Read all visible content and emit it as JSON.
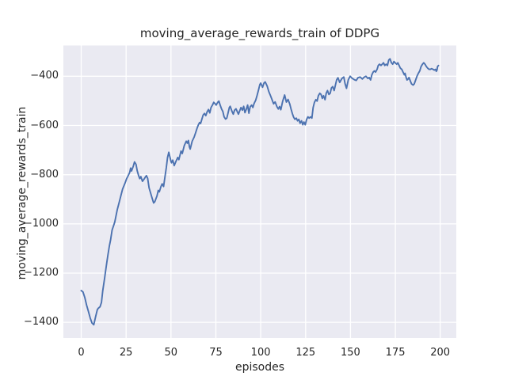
{
  "accent_colors": {
    "figure_background": "#ffffff",
    "axes_background": "#eaeaf2",
    "grid_color": "#ffffff",
    "line_color": "#4c72b0",
    "text_color": "#262626"
  },
  "chart_data": {
    "type": "line",
    "title": "moving_average_rewards_train of DDPG",
    "xlabel": "episodes",
    "ylabel": "moving_average_rewards_train",
    "legend": false,
    "grid": true,
    "xlim": [
      -9.95,
      208.95
    ],
    "ylim": [
      -1464,
      -275
    ],
    "xticks": [
      {
        "value": 0,
        "label": "0"
      },
      {
        "value": 25,
        "label": "25"
      },
      {
        "value": 50,
        "label": "50"
      },
      {
        "value": 75,
        "label": "75"
      },
      {
        "value": 100,
        "label": "100"
      },
      {
        "value": 125,
        "label": "125"
      },
      {
        "value": 150,
        "label": "150"
      },
      {
        "value": 175,
        "label": "175"
      },
      {
        "value": 200,
        "label": "200"
      }
    ],
    "yticks": [
      {
        "value": -400,
        "label": "−400"
      },
      {
        "value": -600,
        "label": "−600"
      },
      {
        "value": -800,
        "label": "−800"
      },
      {
        "value": -1000,
        "label": "−1000"
      },
      {
        "value": -1200,
        "label": "−1200"
      },
      {
        "value": -1400,
        "label": "−1400"
      }
    ],
    "series": [
      {
        "name": "moving_average_rewards_train",
        "color": "#4c72b0",
        "points": [
          [
            0,
            -1271
          ],
          [
            1,
            -1277
          ],
          [
            2,
            -1300
          ],
          [
            3,
            -1330
          ],
          [
            4,
            -1356
          ],
          [
            5,
            -1383
          ],
          [
            6,
            -1403
          ],
          [
            7,
            -1410
          ],
          [
            8,
            -1377
          ],
          [
            9,
            -1348
          ],
          [
            9.5,
            -1343
          ],
          [
            10.5,
            -1337
          ],
          [
            11.3,
            -1319
          ],
          [
            12,
            -1272
          ],
          [
            13,
            -1222
          ],
          [
            13.5,
            -1196
          ],
          [
            14.3,
            -1155
          ],
          [
            15,
            -1121
          ],
          [
            15.7,
            -1089
          ],
          [
            16.3,
            -1067
          ],
          [
            17.2,
            -1025
          ],
          [
            18,
            -1008
          ],
          [
            18.7,
            -992
          ],
          [
            20,
            -944
          ],
          [
            21.5,
            -902
          ],
          [
            23,
            -859
          ],
          [
            24.5,
            -832
          ],
          [
            25.3,
            -816
          ],
          [
            26,
            -806
          ],
          [
            27,
            -791
          ],
          [
            27.5,
            -773
          ],
          [
            28,
            -785
          ],
          [
            29,
            -765
          ],
          [
            29.7,
            -748
          ],
          [
            30.5,
            -758
          ],
          [
            31.2,
            -784
          ],
          [
            32,
            -805
          ],
          [
            32.6,
            -816
          ],
          [
            33.2,
            -808
          ],
          [
            34.1,
            -827
          ],
          [
            35,
            -818
          ],
          [
            35.6,
            -811
          ],
          [
            36.3,
            -804
          ],
          [
            37,
            -815
          ],
          [
            37.8,
            -854
          ],
          [
            39.3,
            -891
          ],
          [
            40.3,
            -915
          ],
          [
            41,
            -910
          ],
          [
            42.2,
            -886
          ],
          [
            42.9,
            -864
          ],
          [
            43.5,
            -870
          ],
          [
            44.4,
            -848
          ],
          [
            45.1,
            -837
          ],
          [
            45.9,
            -848
          ],
          [
            46.6,
            -812
          ],
          [
            47.4,
            -772
          ],
          [
            48.1,
            -730
          ],
          [
            48.8,
            -709
          ],
          [
            50,
            -745
          ],
          [
            50.3,
            -752
          ],
          [
            51,
            -741
          ],
          [
            51.8,
            -763
          ],
          [
            52.8,
            -745
          ],
          [
            53.8,
            -730
          ],
          [
            54.4,
            -739
          ],
          [
            55.6,
            -704
          ],
          [
            56.3,
            -714
          ],
          [
            57.4,
            -682
          ],
          [
            58.5,
            -664
          ],
          [
            59.1,
            -672
          ],
          [
            59.7,
            -661
          ],
          [
            60.3,
            -688
          ],
          [
            60.7,
            -696
          ],
          [
            61.8,
            -664
          ],
          [
            62.9,
            -647
          ],
          [
            63.7,
            -630
          ],
          [
            64.5,
            -612
          ],
          [
            65.2,
            -598
          ],
          [
            65.9,
            -588
          ],
          [
            66.5,
            -592
          ],
          [
            67.2,
            -575
          ],
          [
            67.9,
            -558
          ],
          [
            68.7,
            -551
          ],
          [
            69.4,
            -560
          ],
          [
            70.1,
            -545
          ],
          [
            70.9,
            -535
          ],
          [
            71.6,
            -549
          ],
          [
            72.3,
            -527
          ],
          [
            73.1,
            -517
          ],
          [
            73.8,
            -506
          ],
          [
            74.5,
            -511
          ],
          [
            75.2,
            -517
          ],
          [
            76,
            -506
          ],
          [
            76.7,
            -501
          ],
          [
            77.4,
            -517
          ],
          [
            78.2,
            -533
          ],
          [
            78.9,
            -543
          ],
          [
            79.6,
            -565
          ],
          [
            80.4,
            -574
          ],
          [
            81.1,
            -570
          ],
          [
            81.8,
            -549
          ],
          [
            82.5,
            -527
          ],
          [
            83,
            -522
          ],
          [
            84,
            -543
          ],
          [
            84.7,
            -554
          ],
          [
            85.4,
            -538
          ],
          [
            86.2,
            -532
          ],
          [
            86.9,
            -543
          ],
          [
            87.6,
            -554
          ],
          [
            88.3,
            -540
          ],
          [
            89,
            -527
          ],
          [
            89.8,
            -538
          ],
          [
            90.5,
            -522
          ],
          [
            91.2,
            -548
          ],
          [
            91.9,
            -535
          ],
          [
            92.7,
            -517
          ],
          [
            93.4,
            -550
          ],
          [
            94.1,
            -524
          ],
          [
            94.9,
            -517
          ],
          [
            95.6,
            -527
          ],
          [
            96.3,
            -511
          ],
          [
            97.2,
            -497
          ],
          [
            98,
            -477
          ],
          [
            98.8,
            -455
          ],
          [
            99.5,
            -434
          ],
          [
            100,
            -428
          ],
          [
            101,
            -445
          ],
          [
            101.8,
            -428
          ],
          [
            102.5,
            -423
          ],
          [
            103.6,
            -440
          ],
          [
            104.5,
            -462
          ],
          [
            105.5,
            -480
          ],
          [
            106.3,
            -495
          ],
          [
            107.2,
            -512
          ],
          [
            108,
            -504
          ],
          [
            109,
            -523
          ],
          [
            109.8,
            -533
          ],
          [
            110.5,
            -523
          ],
          [
            111.2,
            -536
          ],
          [
            112.2,
            -502
          ],
          [
            113.3,
            -476
          ],
          [
            114.3,
            -505
          ],
          [
            115.2,
            -494
          ],
          [
            116.2,
            -513
          ],
          [
            116.9,
            -533
          ],
          [
            117.6,
            -551
          ],
          [
            118.3,
            -566
          ],
          [
            119,
            -575
          ],
          [
            119.8,
            -570
          ],
          [
            120.5,
            -581
          ],
          [
            121.2,
            -575
          ],
          [
            121.9,
            -591
          ],
          [
            122.7,
            -581
          ],
          [
            123.4,
            -597
          ],
          [
            124.1,
            -586
          ],
          [
            124.8,
            -597
          ],
          [
            125.6,
            -575
          ],
          [
            126.3,
            -565
          ],
          [
            127,
            -570
          ],
          [
            127.8,
            -565
          ],
          [
            128.5,
            -570
          ],
          [
            129.2,
            -527
          ],
          [
            129.9,
            -506
          ],
          [
            130.7,
            -495
          ],
          [
            131.4,
            -501
          ],
          [
            132.1,
            -479
          ],
          [
            132.9,
            -469
          ],
          [
            133.6,
            -474
          ],
          [
            134.3,
            -490
          ],
          [
            135,
            -479
          ],
          [
            135.8,
            -495
          ],
          [
            136.5,
            -469
          ],
          [
            137.2,
            -458
          ],
          [
            138,
            -474
          ],
          [
            138.7,
            -469
          ],
          [
            139.4,
            -447
          ],
          [
            140.1,
            -442
          ],
          [
            140.9,
            -458
          ],
          [
            141.6,
            -436
          ],
          [
            142.3,
            -414
          ],
          [
            143,
            -406
          ],
          [
            144,
            -425
          ],
          [
            145.2,
            -409
          ],
          [
            146.3,
            -403
          ],
          [
            147,
            -430
          ],
          [
            147.8,
            -449
          ],
          [
            148.8,
            -414
          ],
          [
            149.8,
            -400
          ],
          [
            151,
            -409
          ],
          [
            152.2,
            -414
          ],
          [
            153.2,
            -417
          ],
          [
            154.2,
            -406
          ],
          [
            155.4,
            -403
          ],
          [
            156.6,
            -411
          ],
          [
            157.6,
            -404
          ],
          [
            158.6,
            -400
          ],
          [
            159.7,
            -409
          ],
          [
            160.4,
            -405
          ],
          [
            161.2,
            -415
          ],
          [
            161.9,
            -394
          ],
          [
            162.6,
            -383
          ],
          [
            163.3,
            -378
          ],
          [
            164,
            -383
          ],
          [
            164.8,
            -372
          ],
          [
            165.5,
            -356
          ],
          [
            166.2,
            -351
          ],
          [
            167,
            -356
          ],
          [
            167.7,
            -351
          ],
          [
            168.4,
            -345
          ],
          [
            169.1,
            -356
          ],
          [
            169.9,
            -351
          ],
          [
            170.6,
            -356
          ],
          [
            171.3,
            -334
          ],
          [
            172,
            -329
          ],
          [
            172.8,
            -345
          ],
          [
            173.5,
            -351
          ],
          [
            174.2,
            -340
          ],
          [
            174.9,
            -345
          ],
          [
            175.7,
            -351
          ],
          [
            176.4,
            -345
          ],
          [
            177.1,
            -356
          ],
          [
            177.8,
            -367
          ],
          [
            178.6,
            -372
          ],
          [
            179.3,
            -383
          ],
          [
            180,
            -394
          ],
          [
            180.4,
            -388
          ],
          [
            181,
            -405
          ],
          [
            181.5,
            -415
          ],
          [
            182.2,
            -410
          ],
          [
            182.6,
            -405
          ],
          [
            183.4,
            -420
          ],
          [
            184,
            -431
          ],
          [
            184.9,
            -436
          ],
          [
            185.5,
            -431
          ],
          [
            186.3,
            -415
          ],
          [
            187.1,
            -399
          ],
          [
            187.8,
            -388
          ],
          [
            188.6,
            -378
          ],
          [
            189.3,
            -361
          ],
          [
            190.1,
            -351
          ],
          [
            190.8,
            -345
          ],
          [
            191.5,
            -351
          ],
          [
            192.3,
            -361
          ],
          [
            193,
            -367
          ],
          [
            193.8,
            -372
          ],
          [
            194.5,
            -372
          ],
          [
            195.2,
            -369
          ],
          [
            196,
            -372
          ],
          [
            196.7,
            -375
          ],
          [
            197.4,
            -372
          ],
          [
            197.8,
            -380
          ],
          [
            198.2,
            -375
          ],
          [
            198.5,
            -361
          ],
          [
            199,
            -356
          ]
        ]
      }
    ]
  }
}
